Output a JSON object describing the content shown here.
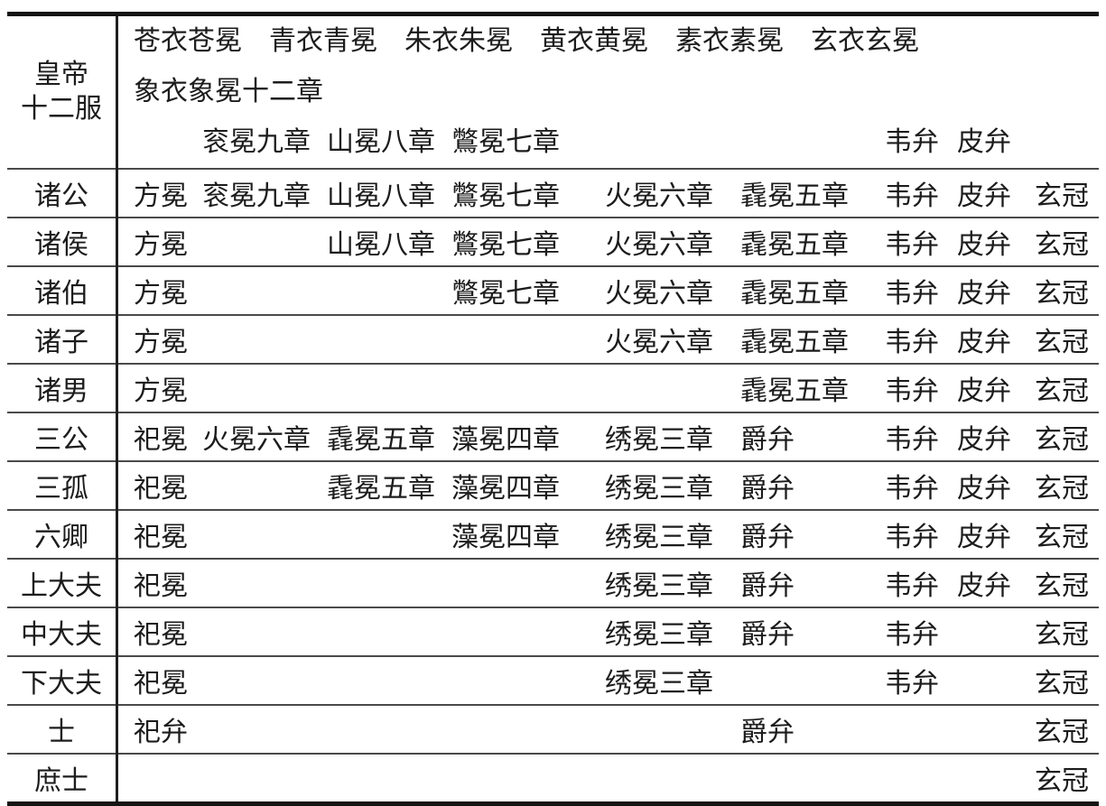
{
  "table": {
    "header": {
      "rank_line1": "皇帝",
      "rank_line2": "十二服",
      "line1": "苍衣苍冕　青衣青冕　朱衣朱冕　黄衣黄冕　素衣素冕　玄衣玄冕",
      "line2": "象衣象冕十二章",
      "line3": {
        "c1": "",
        "c2": "衮冕九章",
        "c3": "山冕八章",
        "c4": "鷩冕七章",
        "c5": "",
        "c6": "",
        "c7": "韦弁",
        "c8": "皮弁",
        "c9": ""
      }
    },
    "rows": [
      {
        "rank": "诸公",
        "cells": [
          "方冕",
          "衮冕九章",
          "山冕八章",
          "鷩冕七章",
          "火冕六章",
          "毳冕五章",
          "韦弁",
          "皮弁",
          "玄冠"
        ]
      },
      {
        "rank": "诸侯",
        "cells": [
          "方冕",
          "",
          "山冕八章",
          "鷩冕七章",
          "火冕六章",
          "毳冕五章",
          "韦弁",
          "皮弁",
          "玄冠"
        ]
      },
      {
        "rank": "诸伯",
        "cells": [
          "方冕",
          "",
          "",
          "鷩冕七章",
          "火冕六章",
          "毳冕五章",
          "韦弁",
          "皮弁",
          "玄冠"
        ]
      },
      {
        "rank": "诸子",
        "cells": [
          "方冕",
          "",
          "",
          "",
          "火冕六章",
          "毳冕五章",
          "韦弁",
          "皮弁",
          "玄冠"
        ]
      },
      {
        "rank": "诸男",
        "cells": [
          "方冕",
          "",
          "",
          "",
          "",
          "毳冕五章",
          "韦弁",
          "皮弁",
          "玄冠"
        ]
      },
      {
        "rank": "三公",
        "cells": [
          "祀冕",
          "火冕六章",
          "毳冕五章",
          "藻冕四章",
          "绣冕三章",
          "爵弁",
          "韦弁",
          "皮弁",
          "玄冠"
        ]
      },
      {
        "rank": "三孤",
        "cells": [
          "祀冕",
          "",
          "毳冕五章",
          "藻冕四章",
          "绣冕三章",
          "爵弁",
          "韦弁",
          "皮弁",
          "玄冠"
        ]
      },
      {
        "rank": "六卿",
        "cells": [
          "祀冕",
          "",
          "",
          "藻冕四章",
          "绣冕三章",
          "爵弁",
          "韦弁",
          "皮弁",
          "玄冠"
        ]
      },
      {
        "rank": "上大夫",
        "cells": [
          "祀冕",
          "",
          "",
          "",
          "绣冕三章",
          "爵弁",
          "韦弁",
          "皮弁",
          "玄冠"
        ]
      },
      {
        "rank": "中大夫",
        "cells": [
          "祀冕",
          "",
          "",
          "",
          "绣冕三章",
          "爵弁",
          "韦弁",
          "",
          "玄冠"
        ]
      },
      {
        "rank": "下大夫",
        "cells": [
          "祀冕",
          "",
          "",
          "",
          "绣冕三章",
          "",
          "韦弁",
          "",
          "玄冠"
        ]
      },
      {
        "rank": "士",
        "cells": [
          "祀弁",
          "",
          "",
          "",
          "",
          "爵弁",
          "",
          "",
          "玄冠"
        ]
      },
      {
        "rank": "庶士",
        "cells": [
          "",
          "",
          "",
          "",
          "",
          "",
          "",
          "",
          "玄冠"
        ]
      }
    ]
  },
  "colors": {
    "background": "#ffffff",
    "text": "#1c1c1c",
    "thick_border": "#141414",
    "thin_line": "#4a4a4a"
  }
}
